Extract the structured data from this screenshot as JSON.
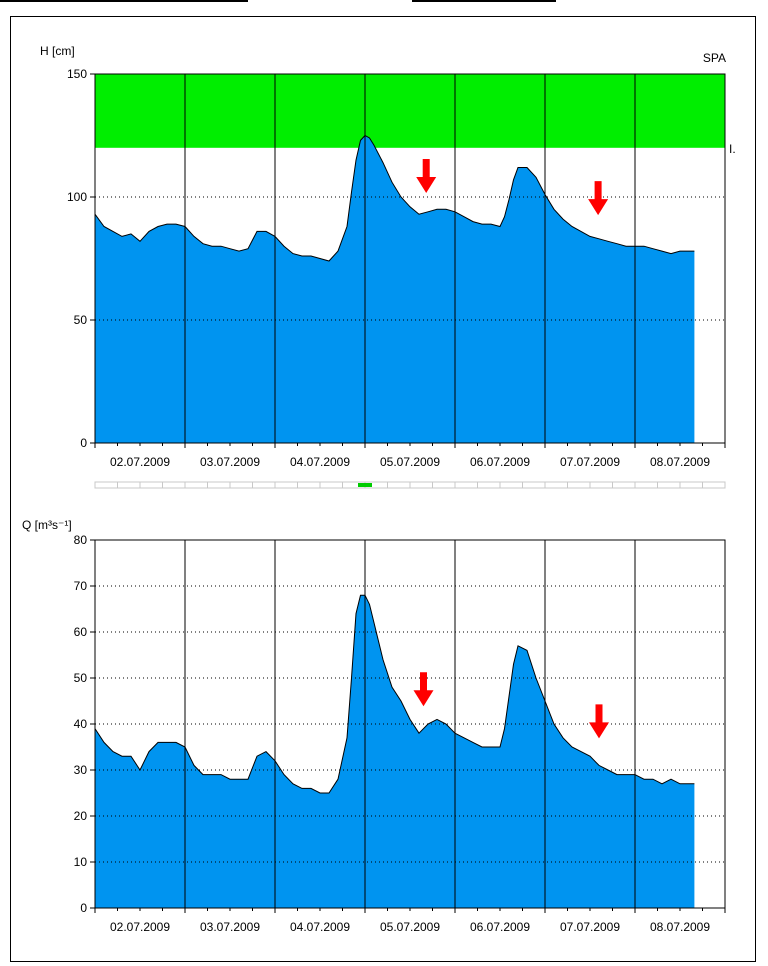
{
  "charts": [
    {
      "id": "H",
      "ylabel": "H [cm]",
      "corner_label": "SPA",
      "band_label": "I.",
      "ylim": [
        0,
        150
      ],
      "yticks": [
        0,
        50,
        100,
        150
      ],
      "dotted_levels": [
        50,
        100
      ],
      "band_range": [
        120,
        150
      ],
      "band_color": "#00ee00",
      "area_color": "#0094f0"
    },
    {
      "id": "Q",
      "ylabel": "Q [m³s⁻¹]",
      "ylim": [
        0,
        80
      ],
      "yticks": [
        0,
        10,
        20,
        30,
        40,
        50,
        60,
        70,
        80
      ],
      "dotted_levels": [
        10,
        20,
        30,
        40,
        50,
        60,
        70
      ],
      "area_color": "#0094f0"
    }
  ],
  "x_ticks": [
    "02.07.2009",
    "03.07.2009",
    "04.07.2009",
    "05.07.2009",
    "06.07.2009",
    "07.07.2009",
    "08.07.2009"
  ],
  "chart_data": [
    {
      "type": "area",
      "title": "",
      "ylabel": "H [cm]",
      "ylim": [
        0,
        150
      ],
      "x_unit": "days since 01.07.2009 00:00",
      "x": [
        1.0,
        1.1,
        1.2,
        1.3,
        1.4,
        1.5,
        1.6,
        1.7,
        1.8,
        1.9,
        2.0,
        2.1,
        2.2,
        2.3,
        2.4,
        2.5,
        2.6,
        2.7,
        2.8,
        2.9,
        3.0,
        3.1,
        3.2,
        3.3,
        3.4,
        3.5,
        3.6,
        3.7,
        3.8,
        3.85,
        3.9,
        3.95,
        4.0,
        4.05,
        4.1,
        4.2,
        4.3,
        4.4,
        4.5,
        4.6,
        4.7,
        4.8,
        4.9,
        5.0,
        5.1,
        5.2,
        5.3,
        5.4,
        5.5,
        5.55,
        5.6,
        5.65,
        5.7,
        5.8,
        5.9,
        6.0,
        6.1,
        6.2,
        6.3,
        6.4,
        6.5,
        6.6,
        6.7,
        6.8,
        6.9,
        7.0,
        7.1,
        7.2,
        7.3,
        7.4,
        7.5,
        7.6,
        7.66
      ],
      "series": [
        {
          "values": [
            93,
            88,
            86,
            84,
            85,
            82,
            86,
            88,
            89,
            89,
            88,
            84,
            81,
            80,
            80,
            79,
            78,
            79,
            86,
            86,
            84,
            80,
            77,
            76,
            76,
            75,
            74,
            78,
            88,
            102,
            115,
            123,
            125,
            124,
            121,
            114,
            106,
            100,
            96,
            93,
            94,
            95,
            95,
            94,
            92,
            90,
            89,
            89,
            88,
            92,
            99,
            107,
            112,
            112,
            108,
            101,
            95,
            91,
            88,
            86,
            84,
            83,
            82,
            81,
            80,
            80,
            80,
            79,
            78,
            77,
            78,
            78,
            78
          ],
          "color": "#0094f0"
        }
      ],
      "bands": [
        {
          "from": 120,
          "to": 150,
          "color": "#00ee00",
          "label": "I."
        }
      ],
      "annotations": [
        {
          "type": "arrow",
          "x": 4.68,
          "y": 100,
          "color": "#ff0000"
        },
        {
          "type": "arrow",
          "x": 6.59,
          "y": 91,
          "color": "#ff0000"
        }
      ],
      "grid": "dotted horizontal at 50 and 100, solid vertical at day boundaries"
    },
    {
      "type": "area",
      "title": "",
      "ylabel": "Q [m³s⁻¹]",
      "ylim": [
        0,
        80
      ],
      "x_unit": "days since 01.07.2009 00:00",
      "x": [
        1.0,
        1.1,
        1.2,
        1.3,
        1.4,
        1.5,
        1.6,
        1.7,
        1.8,
        1.9,
        2.0,
        2.1,
        2.2,
        2.3,
        2.4,
        2.5,
        2.6,
        2.7,
        2.8,
        2.9,
        3.0,
        3.1,
        3.2,
        3.3,
        3.4,
        3.5,
        3.6,
        3.7,
        3.8,
        3.85,
        3.9,
        3.95,
        4.0,
        4.05,
        4.1,
        4.2,
        4.3,
        4.4,
        4.5,
        4.6,
        4.7,
        4.8,
        4.9,
        5.0,
        5.1,
        5.2,
        5.3,
        5.4,
        5.5,
        5.55,
        5.6,
        5.65,
        5.7,
        5.8,
        5.9,
        6.0,
        6.1,
        6.2,
        6.3,
        6.4,
        6.5,
        6.6,
        6.7,
        6.8,
        6.9,
        7.0,
        7.1,
        7.2,
        7.3,
        7.4,
        7.5,
        7.6,
        7.66
      ],
      "series": [
        {
          "values": [
            39,
            36,
            34,
            33,
            33,
            30,
            34,
            36,
            36,
            36,
            35,
            31,
            29,
            29,
            29,
            28,
            28,
            28,
            33,
            34,
            32,
            29,
            27,
            26,
            26,
            25,
            25,
            28,
            37,
            50,
            64,
            68,
            68,
            66,
            62,
            54,
            48,
            45,
            41,
            38,
            40,
            41,
            40,
            38,
            37,
            36,
            35,
            35,
            35,
            39,
            46,
            53,
            57,
            56,
            50,
            45,
            40,
            37,
            35,
            34,
            33,
            31,
            30,
            29,
            29,
            29,
            28,
            28,
            27,
            28,
            27,
            27,
            27
          ],
          "color": "#0094f0"
        }
      ],
      "annotations": [
        {
          "type": "arrow",
          "x": 4.65,
          "y": 43,
          "color": "#ff0000"
        },
        {
          "type": "arrow",
          "x": 6.6,
          "y": 36,
          "color": "#ff0000"
        }
      ],
      "grid": "dotted horizontal every 10, solid vertical at day boundaries"
    }
  ]
}
